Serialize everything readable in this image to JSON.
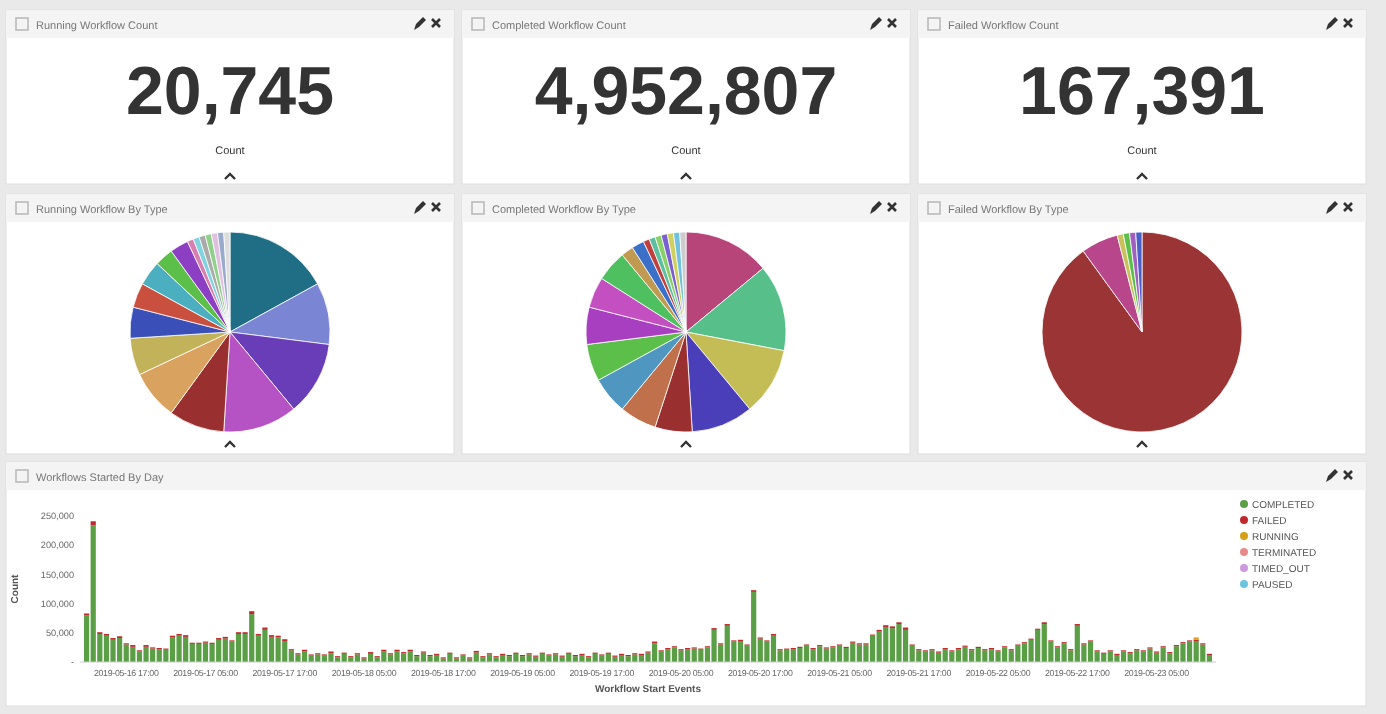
{
  "chart_data": [
    {
      "type": "other",
      "title": "Running Workflow Count",
      "values": [
        20745
      ],
      "value_labels": [
        "20,745"
      ],
      "annotations": [
        "Count"
      ]
    },
    {
      "type": "other",
      "title": "Completed Workflow Count",
      "values": [
        4952807
      ],
      "value_labels": [
        "4,952,807"
      ],
      "annotations": [
        "Count"
      ]
    },
    {
      "type": "other",
      "title": "Failed Workflow Count",
      "values": [
        167391
      ],
      "value_labels": [
        "167,391"
      ],
      "annotations": [
        "Count"
      ]
    },
    {
      "type": "pie",
      "title": "Running Workflow By Type",
      "categories": [
        null,
        null,
        null,
        null,
        null,
        null,
        null,
        null,
        null,
        null,
        null,
        null,
        null,
        null,
        null,
        null,
        null,
        null,
        null
      ],
      "values": [
        17,
        10,
        12,
        12,
        9,
        8,
        6,
        5,
        4,
        4,
        3,
        3,
        1,
        1,
        1,
        1,
        1,
        1,
        1
      ],
      "colors": [
        "#1f6e85",
        "#7a86d4",
        "#6a3db8",
        "#b552c4",
        "#9a2f2f",
        "#d9a25e",
        "#c2b35a",
        "#3b4fb8",
        "#c9503f",
        "#4bafc0",
        "#5bbf4a",
        "#8d3fc4",
        "#d67fb0",
        "#7fd4e0",
        "#aaaaaa",
        "#8fd18a",
        "#e0c0e0",
        "#99aacc",
        "#dddddd"
      ]
    },
    {
      "type": "pie",
      "title": "Completed Workflow By Type",
      "categories": [
        null,
        null,
        null,
        null,
        null,
        null,
        null,
        null,
        null,
        null,
        null,
        null,
        null,
        null,
        null,
        null,
        null,
        null,
        null,
        null
      ],
      "values": [
        14,
        14,
        11,
        10,
        6,
        6,
        6,
        6,
        6,
        5,
        5,
        2,
        2,
        1,
        1,
        1,
        1,
        1,
        1,
        1
      ],
      "colors": [
        "#b8457a",
        "#57c08a",
        "#c4bd55",
        "#4a3fb8",
        "#9a2f2f",
        "#c0704a",
        "#4f97c0",
        "#5bbf4a",
        "#a83fc0",
        "#c44fc0",
        "#4fc060",
        "#c09a50",
        "#3b6fc8",
        "#c03f3f",
        "#5bbfa0",
        "#8acf6a",
        "#7a5fd0",
        "#d0d060",
        "#70c0e0",
        "#cccccc"
      ]
    },
    {
      "type": "pie",
      "title": "Failed Workflow By Type",
      "categories": [
        null,
        null,
        null,
        null,
        null,
        null
      ],
      "values": [
        90,
        6,
        1,
        1,
        1,
        1
      ],
      "colors": [
        "#9b3535",
        "#b8468a",
        "#c9c25a",
        "#5bbf4a",
        "#a060c0",
        "#4a5fc8"
      ]
    },
    {
      "type": "bar",
      "title": "Workflows Started By Day",
      "xlabel": "Workflow Start Events",
      "ylabel": "Count",
      "stacked": true,
      "legend": "right",
      "grid": false,
      "ylim": [
        0,
        250000
      ],
      "yticks": [
        {
          "value": 0,
          "label": "-"
        },
        {
          "value": 50000,
          "label": "50,000"
        },
        {
          "value": 100000,
          "label": "100,000"
        },
        {
          "value": 150000,
          "label": "150,000"
        },
        {
          "value": 200000,
          "label": "200,000"
        },
        {
          "value": 250000,
          "label": "250,000"
        }
      ],
      "xlim": [
        "2019-05-16T10:00",
        "2019-05-23T14:00"
      ],
      "xticks": [
        {
          "value": "2019-05-16T17:00",
          "label": "2019-05-16 17:00"
        },
        {
          "value": "2019-05-17T05:00",
          "label": "2019-05-17 05:00"
        },
        {
          "value": "2019-05-17T17:00",
          "label": "2019-05-17 17:00"
        },
        {
          "value": "2019-05-18T05:00",
          "label": "2019-05-18 05:00"
        },
        {
          "value": "2019-05-18T17:00",
          "label": "2019-05-18 17:00"
        },
        {
          "value": "2019-05-19T05:00",
          "label": "2019-05-19 05:00"
        },
        {
          "value": "2019-05-19T17:00",
          "label": "2019-05-19 17:00"
        },
        {
          "value": "2019-05-20T05:00",
          "label": "2019-05-20 05:00"
        },
        {
          "value": "2019-05-20T17:00",
          "label": "2019-05-20 17:00"
        },
        {
          "value": "2019-05-21T05:00",
          "label": "2019-05-21 05:00"
        },
        {
          "value": "2019-05-21T17:00",
          "label": "2019-05-21 17:00"
        },
        {
          "value": "2019-05-22T05:00",
          "label": "2019-05-22 05:00"
        },
        {
          "value": "2019-05-22T17:00",
          "label": "2019-05-22 17:00"
        },
        {
          "value": "2019-05-23T05:00",
          "label": "2019-05-23 05:00"
        }
      ],
      "x": [
        "2019-05-16T11:00",
        "2019-05-16T12:00",
        "2019-05-16T13:00",
        "2019-05-16T14:00",
        "2019-05-16T15:00",
        "2019-05-16T16:00",
        "2019-05-16T17:00",
        "2019-05-16T18:00",
        "2019-05-16T19:00",
        "2019-05-16T20:00",
        "2019-05-16T21:00",
        "2019-05-16T22:00",
        "2019-05-16T23:00",
        "2019-05-17T00:00",
        "2019-05-17T01:00",
        "2019-05-17T02:00",
        "2019-05-17T03:00",
        "2019-05-17T04:00",
        "2019-05-17T05:00",
        "2019-05-17T06:00",
        "2019-05-17T07:00",
        "2019-05-17T08:00",
        "2019-05-17T09:00",
        "2019-05-17T10:00",
        "2019-05-17T11:00",
        "2019-05-17T12:00",
        "2019-05-17T13:00",
        "2019-05-17T14:00",
        "2019-05-17T15:00",
        "2019-05-17T16:00",
        "2019-05-17T17:00",
        "2019-05-17T18:00",
        "2019-05-17T19:00",
        "2019-05-17T20:00",
        "2019-05-17T21:00",
        "2019-05-17T22:00",
        "2019-05-17T23:00",
        "2019-05-18T00:00",
        "2019-05-18T01:00",
        "2019-05-18T02:00",
        "2019-05-18T03:00",
        "2019-05-18T04:00",
        "2019-05-18T05:00",
        "2019-05-18T06:00",
        "2019-05-18T07:00",
        "2019-05-18T08:00",
        "2019-05-18T09:00",
        "2019-05-18T10:00",
        "2019-05-18T11:00",
        "2019-05-18T12:00",
        "2019-05-18T13:00",
        "2019-05-18T14:00",
        "2019-05-18T15:00",
        "2019-05-18T16:00",
        "2019-05-18T17:00",
        "2019-05-18T18:00",
        "2019-05-18T19:00",
        "2019-05-18T20:00",
        "2019-05-18T21:00",
        "2019-05-18T22:00",
        "2019-05-18T23:00",
        "2019-05-19T00:00",
        "2019-05-19T01:00",
        "2019-05-19T02:00",
        "2019-05-19T03:00",
        "2019-05-19T04:00",
        "2019-05-19T05:00",
        "2019-05-19T06:00",
        "2019-05-19T07:00",
        "2019-05-19T08:00",
        "2019-05-19T09:00",
        "2019-05-19T10:00",
        "2019-05-19T11:00",
        "2019-05-19T12:00",
        "2019-05-19T13:00",
        "2019-05-19T14:00",
        "2019-05-19T15:00",
        "2019-05-19T16:00",
        "2019-05-19T17:00",
        "2019-05-19T18:00",
        "2019-05-19T19:00",
        "2019-05-19T20:00",
        "2019-05-19T21:00",
        "2019-05-19T22:00",
        "2019-05-19T23:00",
        "2019-05-20T00:00",
        "2019-05-20T01:00",
        "2019-05-20T02:00",
        "2019-05-20T03:00",
        "2019-05-20T04:00",
        "2019-05-20T05:00",
        "2019-05-20T06:00",
        "2019-05-20T07:00",
        "2019-05-20T08:00",
        "2019-05-20T09:00",
        "2019-05-20T10:00",
        "2019-05-20T11:00",
        "2019-05-20T12:00",
        "2019-05-20T13:00",
        "2019-05-20T14:00",
        "2019-05-20T15:00",
        "2019-05-20T16:00",
        "2019-05-20T17:00",
        "2019-05-20T18:00",
        "2019-05-20T19:00",
        "2019-05-20T20:00",
        "2019-05-20T21:00",
        "2019-05-20T22:00",
        "2019-05-20T23:00",
        "2019-05-21T00:00",
        "2019-05-21T01:00",
        "2019-05-21T02:00",
        "2019-05-21T03:00",
        "2019-05-21T04:00",
        "2019-05-21T05:00",
        "2019-05-21T06:00",
        "2019-05-21T07:00",
        "2019-05-21T08:00",
        "2019-05-21T09:00",
        "2019-05-21T10:00",
        "2019-05-21T11:00",
        "2019-05-21T12:00",
        "2019-05-21T13:00",
        "2019-05-21T14:00",
        "2019-05-21T15:00",
        "2019-05-21T16:00",
        "2019-05-21T17:00",
        "2019-05-21T18:00",
        "2019-05-21T19:00",
        "2019-05-21T20:00",
        "2019-05-21T21:00",
        "2019-05-21T22:00",
        "2019-05-21T23:00",
        "2019-05-22T00:00",
        "2019-05-22T01:00",
        "2019-05-22T02:00",
        "2019-05-22T03:00",
        "2019-05-22T04:00",
        "2019-05-22T05:00",
        "2019-05-22T06:00",
        "2019-05-22T07:00",
        "2019-05-22T08:00",
        "2019-05-22T09:00",
        "2019-05-22T10:00",
        "2019-05-22T11:00",
        "2019-05-22T12:00",
        "2019-05-22T13:00",
        "2019-05-22T14:00",
        "2019-05-22T15:00",
        "2019-05-22T16:00",
        "2019-05-22T17:00",
        "2019-05-22T18:00",
        "2019-05-22T19:00",
        "2019-05-22T20:00",
        "2019-05-22T21:00",
        "2019-05-22T22:00",
        "2019-05-22T23:00",
        "2019-05-23T00:00",
        "2019-05-23T01:00",
        "2019-05-23T02:00",
        "2019-05-23T03:00",
        "2019-05-23T04:00",
        "2019-05-23T05:00",
        "2019-05-23T06:00",
        "2019-05-23T07:00",
        "2019-05-23T08:00",
        "2019-05-23T09:00",
        "2019-05-23T10:00",
        "2019-05-23T11:00",
        "2019-05-23T12:00",
        "2019-05-23T13:00"
      ],
      "series": [
        {
          "name": "COMPLETED",
          "color": "#5a9e45",
          "values": [
            80000,
            234000,
            48000,
            45000,
            38000,
            41000,
            30000,
            26000,
            18000,
            26000,
            23000,
            22000,
            21000,
            42000,
            45000,
            43000,
            31000,
            31000,
            33000,
            31000,
            38000,
            40000,
            35000,
            48000,
            48000,
            82000,
            45000,
            55000,
            43000,
            42000,
            36000,
            20000,
            13000,
            18000,
            11000,
            13000,
            11000,
            15000,
            8000,
            14000,
            8000,
            13000,
            6000,
            14000,
            8000,
            18000,
            13000,
            18000,
            15000,
            18000,
            10000,
            16000,
            10000,
            12000,
            6000,
            14000,
            6000,
            11000,
            6000,
            16000,
            8000,
            13000,
            8000,
            12000,
            10000,
            14000,
            10000,
            13000,
            9000,
            14000,
            11000,
            13000,
            9000,
            14000,
            10000,
            12000,
            8000,
            14000,
            11000,
            14000,
            9000,
            12000,
            10000,
            13000,
            12000,
            16000,
            32000,
            18000,
            22000,
            25000,
            20000,
            22000,
            23000,
            21000,
            25000,
            55000,
            30000,
            62000,
            35000,
            36000,
            28000,
            120000,
            40000,
            35000,
            45000,
            20000,
            21000,
            22000,
            24000,
            28000,
            22000,
            27000,
            23000,
            25000,
            28000,
            24000,
            33000,
            30000,
            30000,
            45000,
            52000,
            60000,
            58000,
            65000,
            55000,
            28000,
            20000,
            18000,
            20000,
            16000,
            22000,
            18000,
            22000,
            26000,
            20000,
            24000,
            20000,
            22000,
            18000,
            25000,
            20000,
            28000,
            32000,
            38000,
            55000,
            65000,
            35000,
            25000,
            32000,
            20000,
            62000,
            30000,
            35000,
            18000,
            14000,
            18000,
            12000,
            18000,
            15000,
            20000,
            18000,
            23000,
            16000,
            25000,
            15000,
            27000,
            32000,
            35000,
            36000,
            30000,
            12000
          ]
        },
        {
          "name": "FAILED",
          "color": "#c0282d",
          "values": [
            3000,
            7000,
            3000,
            3000,
            3000,
            3000,
            2000,
            3000,
            2000,
            3000,
            2000,
            2000,
            2000,
            3000,
            3000,
            3000,
            2000,
            2000,
            2000,
            2000,
            3000,
            3000,
            2000,
            3000,
            3000,
            5000,
            3000,
            4000,
            3000,
            3000,
            3000,
            2000,
            2000,
            3000,
            2000,
            2000,
            2000,
            3000,
            2000,
            2000,
            2000,
            2000,
            2000,
            3000,
            2000,
            3000,
            2000,
            3000,
            2000,
            3000,
            2000,
            2000,
            2000,
            2000,
            2000,
            2000,
            2000,
            2000,
            2000,
            3000,
            2000,
            2000,
            2000,
            2000,
            2000,
            2000,
            2000,
            2000,
            2000,
            2000,
            2000,
            2000,
            2000,
            2000,
            2000,
            2000,
            2000,
            2000,
            2000,
            2000,
            2000,
            2000,
            2000,
            2000,
            2000,
            2000,
            3000,
            2000,
            2000,
            2000,
            2000,
            2000,
            2000,
            2000,
            2000,
            3000,
            2000,
            3000,
            2000,
            2000,
            2000,
            3000,
            2000,
            2000,
            3000,
            2000,
            2000,
            2000,
            2000,
            2000,
            2000,
            2000,
            2000,
            2000,
            2000,
            2000,
            2000,
            2000,
            2000,
            2000,
            3000,
            3000,
            3000,
            3000,
            4000,
            2000,
            2000,
            2000,
            2000,
            2000,
            2000,
            2000,
            2000,
            2000,
            2000,
            2000,
            2000,
            2000,
            2000,
            2000,
            2000,
            2000,
            2000,
            2000,
            2000,
            3000,
            2000,
            2000,
            2000,
            2000,
            3000,
            2000,
            2000,
            2000,
            2000,
            2000,
            2000,
            2000,
            2000,
            2000,
            2000,
            2000,
            2000,
            2000,
            2000,
            2000,
            2000,
            2000,
            2000,
            2000,
            2000
          ]
        },
        {
          "name": "RUNNING",
          "color": "#d4a017",
          "values": [
            0,
            0,
            0,
            0,
            0,
            0,
            0,
            0,
            0,
            0,
            0,
            0,
            0,
            0,
            0,
            0,
            0,
            0,
            0,
            0,
            0,
            0,
            0,
            0,
            0,
            0,
            0,
            0,
            0,
            0,
            0,
            0,
            0,
            0,
            0,
            0,
            0,
            0,
            0,
            0,
            0,
            0,
            0,
            0,
            0,
            0,
            0,
            0,
            0,
            0,
            0,
            0,
            0,
            0,
            0,
            0,
            0,
            0,
            0,
            0,
            0,
            0,
            0,
            0,
            0,
            0,
            0,
            0,
            0,
            0,
            0,
            0,
            0,
            0,
            0,
            0,
            0,
            0,
            0,
            0,
            0,
            0,
            0,
            0,
            0,
            0,
            0,
            0,
            0,
            0,
            0,
            0,
            0,
            0,
            0,
            0,
            0,
            0,
            0,
            0,
            0,
            0,
            0,
            0,
            0,
            0,
            0,
            0,
            0,
            0,
            0,
            0,
            0,
            0,
            0,
            0,
            0,
            0,
            0,
            0,
            0,
            0,
            0,
            0,
            0,
            0,
            0,
            0,
            0,
            0,
            0,
            0,
            0,
            0,
            0,
            0,
            0,
            0,
            0,
            0,
            0,
            0,
            0,
            0,
            0,
            0,
            0,
            0,
            0,
            0,
            0,
            0,
            0,
            0,
            0,
            0,
            0,
            0,
            0,
            0,
            0,
            0,
            0,
            0,
            0,
            0,
            0,
            0,
            4000,
            0,
            0
          ]
        },
        {
          "name": "TERMINATED",
          "color": "#e88a8a",
          "values": [
            null,
            null,
            null,
            null,
            null,
            null,
            null,
            null,
            null,
            null,
            null,
            null,
            null,
            null,
            null,
            null,
            null,
            null,
            null,
            null,
            null,
            null,
            null,
            null,
            null,
            null,
            null,
            null,
            null,
            null,
            null,
            null,
            null,
            null,
            null,
            null,
            null,
            null,
            null,
            null,
            null,
            null,
            null,
            null,
            null,
            null,
            null,
            null,
            null,
            null,
            null,
            null,
            null,
            null,
            null,
            null,
            null,
            null,
            null,
            null,
            null,
            null,
            null,
            null,
            null,
            null,
            null,
            null,
            null,
            null,
            null,
            null,
            null,
            null,
            null,
            null,
            null,
            null,
            null,
            null,
            null,
            null,
            null,
            null,
            null,
            null,
            null,
            null,
            null,
            null,
            null,
            null,
            null,
            null,
            null,
            null,
            null,
            null,
            null,
            null,
            null,
            null,
            null,
            null,
            null,
            null,
            null,
            null,
            null,
            null,
            null,
            null,
            null,
            null,
            null,
            null,
            null,
            null,
            null,
            null,
            null,
            null,
            null,
            null,
            null,
            null,
            null,
            null,
            null,
            null,
            null,
            null,
            null,
            null,
            null,
            null,
            null,
            null,
            null,
            null,
            null,
            null,
            null,
            null,
            null,
            null,
            null,
            null,
            null,
            null,
            null,
            null,
            null,
            null,
            null,
            null,
            null,
            null,
            null,
            null,
            null,
            null,
            null,
            null,
            null,
            null,
            null,
            null,
            null,
            null,
            null
          ]
        },
        {
          "name": "TIMED_OUT",
          "color": "#cc99dd",
          "values": [
            null,
            null,
            null,
            null,
            null,
            null,
            null,
            null,
            null,
            null,
            null,
            null,
            null,
            null,
            null,
            null,
            null,
            null,
            null,
            null,
            null,
            null,
            null,
            null,
            null,
            null,
            null,
            null,
            null,
            null,
            null,
            null,
            null,
            null,
            null,
            null,
            null,
            null,
            null,
            null,
            null,
            null,
            null,
            null,
            null,
            null,
            null,
            null,
            null,
            null,
            null,
            null,
            null,
            null,
            null,
            null,
            null,
            null,
            null,
            null,
            null,
            null,
            null,
            null,
            null,
            null,
            null,
            null,
            null,
            null,
            null,
            null,
            null,
            null,
            null,
            null,
            null,
            null,
            null,
            null,
            null,
            null,
            null,
            null,
            null,
            null,
            null,
            null,
            null,
            null,
            null,
            null,
            null,
            null,
            null,
            null,
            null,
            null,
            null,
            null,
            null,
            null,
            null,
            null,
            null,
            null,
            null,
            null,
            null,
            null,
            null,
            null,
            null,
            null,
            null,
            null,
            null,
            null,
            null,
            null,
            null,
            null,
            null,
            null,
            null,
            null,
            null,
            null,
            null,
            null,
            null,
            null,
            null,
            null,
            null,
            null,
            null,
            null,
            null,
            null,
            null,
            null,
            null,
            null,
            null,
            null,
            null,
            null,
            null,
            null,
            null,
            null,
            null,
            null,
            null,
            null,
            null,
            null,
            null,
            null,
            null,
            null,
            null,
            null,
            null,
            null,
            null,
            null,
            null,
            null,
            null
          ]
        },
        {
          "name": "PAUSED",
          "color": "#6cc5e0",
          "values": [
            null,
            null,
            null,
            null,
            null,
            null,
            null,
            null,
            null,
            null,
            null,
            null,
            null,
            null,
            null,
            null,
            null,
            null,
            null,
            null,
            null,
            null,
            null,
            null,
            null,
            null,
            null,
            null,
            null,
            null,
            null,
            null,
            null,
            null,
            null,
            null,
            null,
            null,
            null,
            null,
            null,
            null,
            null,
            null,
            null,
            null,
            null,
            null,
            null,
            null,
            null,
            null,
            null,
            null,
            null,
            null,
            null,
            null,
            null,
            null,
            null,
            null,
            null,
            null,
            null,
            null,
            null,
            null,
            null,
            null,
            null,
            null,
            null,
            null,
            null,
            null,
            null,
            null,
            null,
            null,
            null,
            null,
            null,
            null,
            null,
            null,
            null,
            null,
            null,
            null,
            null,
            null,
            null,
            null,
            null,
            null,
            null,
            null,
            null,
            null,
            null,
            null,
            null,
            null,
            null,
            null,
            null,
            null,
            null,
            null,
            null,
            null,
            null,
            null,
            null,
            null,
            null,
            null,
            null,
            null,
            null,
            null,
            null,
            null,
            null,
            null,
            null,
            null,
            null,
            null,
            null,
            null,
            null,
            null,
            null,
            null,
            null,
            null,
            null,
            null,
            null,
            null,
            null,
            null,
            null,
            null,
            null,
            null,
            null,
            null,
            null,
            null,
            null,
            null,
            null,
            null,
            null,
            null,
            null,
            null,
            null,
            null,
            null,
            null,
            null,
            null,
            null,
            null,
            null,
            null,
            null
          ]
        }
      ]
    }
  ]
}
